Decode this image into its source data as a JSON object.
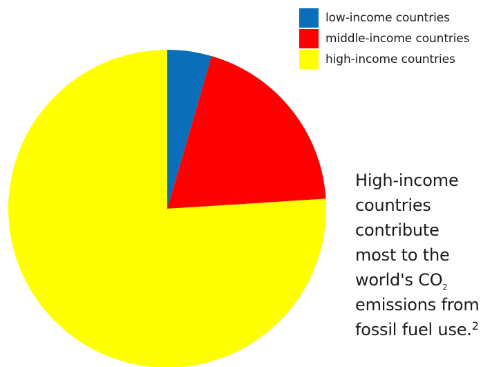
{
  "chart_data": {
    "type": "pie",
    "title": "",
    "categories": [
      "low-income countries",
      "middle-income countries",
      "high-income countries"
    ],
    "values": [
      4.5,
      19.5,
      76
    ],
    "colors": [
      "#0a6fb8",
      "#ff0000",
      "#ffff00"
    ],
    "start_angle_deg": 0,
    "direction": "clockwise",
    "legend_position": "top-right"
  },
  "annotation": {
    "line1": "High-income",
    "line2": "countries",
    "line3": "contribute",
    "line4": "most to the",
    "line5_pre": "world's CO",
    "line5_sub": "2",
    "line6": "emissions from",
    "line7_pre": "fossil fuel use.",
    "line7_sup": "2"
  }
}
